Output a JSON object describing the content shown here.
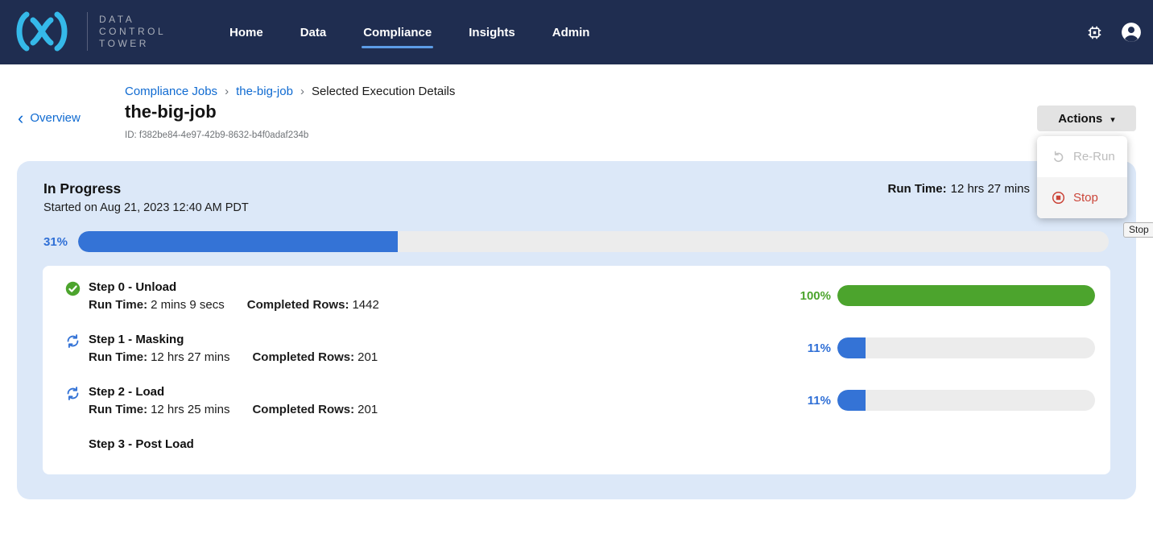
{
  "brand": {
    "lines": [
      "DATA",
      "CONTROL",
      "TOWER"
    ]
  },
  "nav": {
    "items": [
      "Home",
      "Data",
      "Compliance",
      "Insights",
      "Admin"
    ],
    "active_item": "Compliance"
  },
  "glyphs": {
    "chevron_left": "‹",
    "breadcrumb_sep": "›",
    "caret_down": "▾"
  },
  "header": {
    "back_label": "Overview",
    "breadcrumb": [
      "Compliance Jobs",
      "the-big-job",
      "Selected Execution Details"
    ],
    "title": "the-big-job",
    "id_text": "ID: f382be84-4e97-42b9-8632-b4f0adaf234b",
    "actions_label": "Actions"
  },
  "actions_menu": {
    "rerun_label": "Re-Run",
    "stop_label": "Stop",
    "tooltip": "Stop"
  },
  "execution": {
    "status": "In Progress",
    "started": "Started on Aug 21, 2023 12:40 AM PDT",
    "run_time_label": "Run Time:",
    "run_time": "12 hrs 27 mins",
    "overall": {
      "pct_label": "31%",
      "pct": 31
    },
    "steps": [
      {
        "title": "Step 0 - Unload",
        "icon": "check-circle-icon",
        "run_time_label": "Run Time:",
        "run_time": "2 mins 9 secs",
        "rows_label": "Completed Rows:",
        "rows": "1442",
        "pct_label": "100%",
        "pct": 100
      },
      {
        "title": "Step 1 - Masking",
        "icon": "sync-icon",
        "run_time_label": "Run Time:",
        "run_time": "12 hrs 27 mins",
        "rows_label": "Completed Rows:",
        "rows": "201",
        "pct_label": "11%",
        "pct": 11
      },
      {
        "title": "Step 2 - Load",
        "icon": "sync-icon",
        "run_time_label": "Run Time:",
        "run_time": "12 hrs 25 mins",
        "rows_label": "Completed Rows:",
        "rows": "201",
        "pct_label": "11%",
        "pct": 11
      },
      {
        "title": "Step 3 - Post Load"
      }
    ]
  },
  "colors": {
    "nav_bg": "#1f2d50",
    "logo_blue": "#35b9e9",
    "link_blue": "#0f6ad1",
    "active_tab_underline": "#5c9ce6",
    "progress_blue": "#3473d6",
    "success_green": "#4ca42d",
    "stop_red": "#cb4539",
    "panel_bg": "#dce8f8"
  }
}
